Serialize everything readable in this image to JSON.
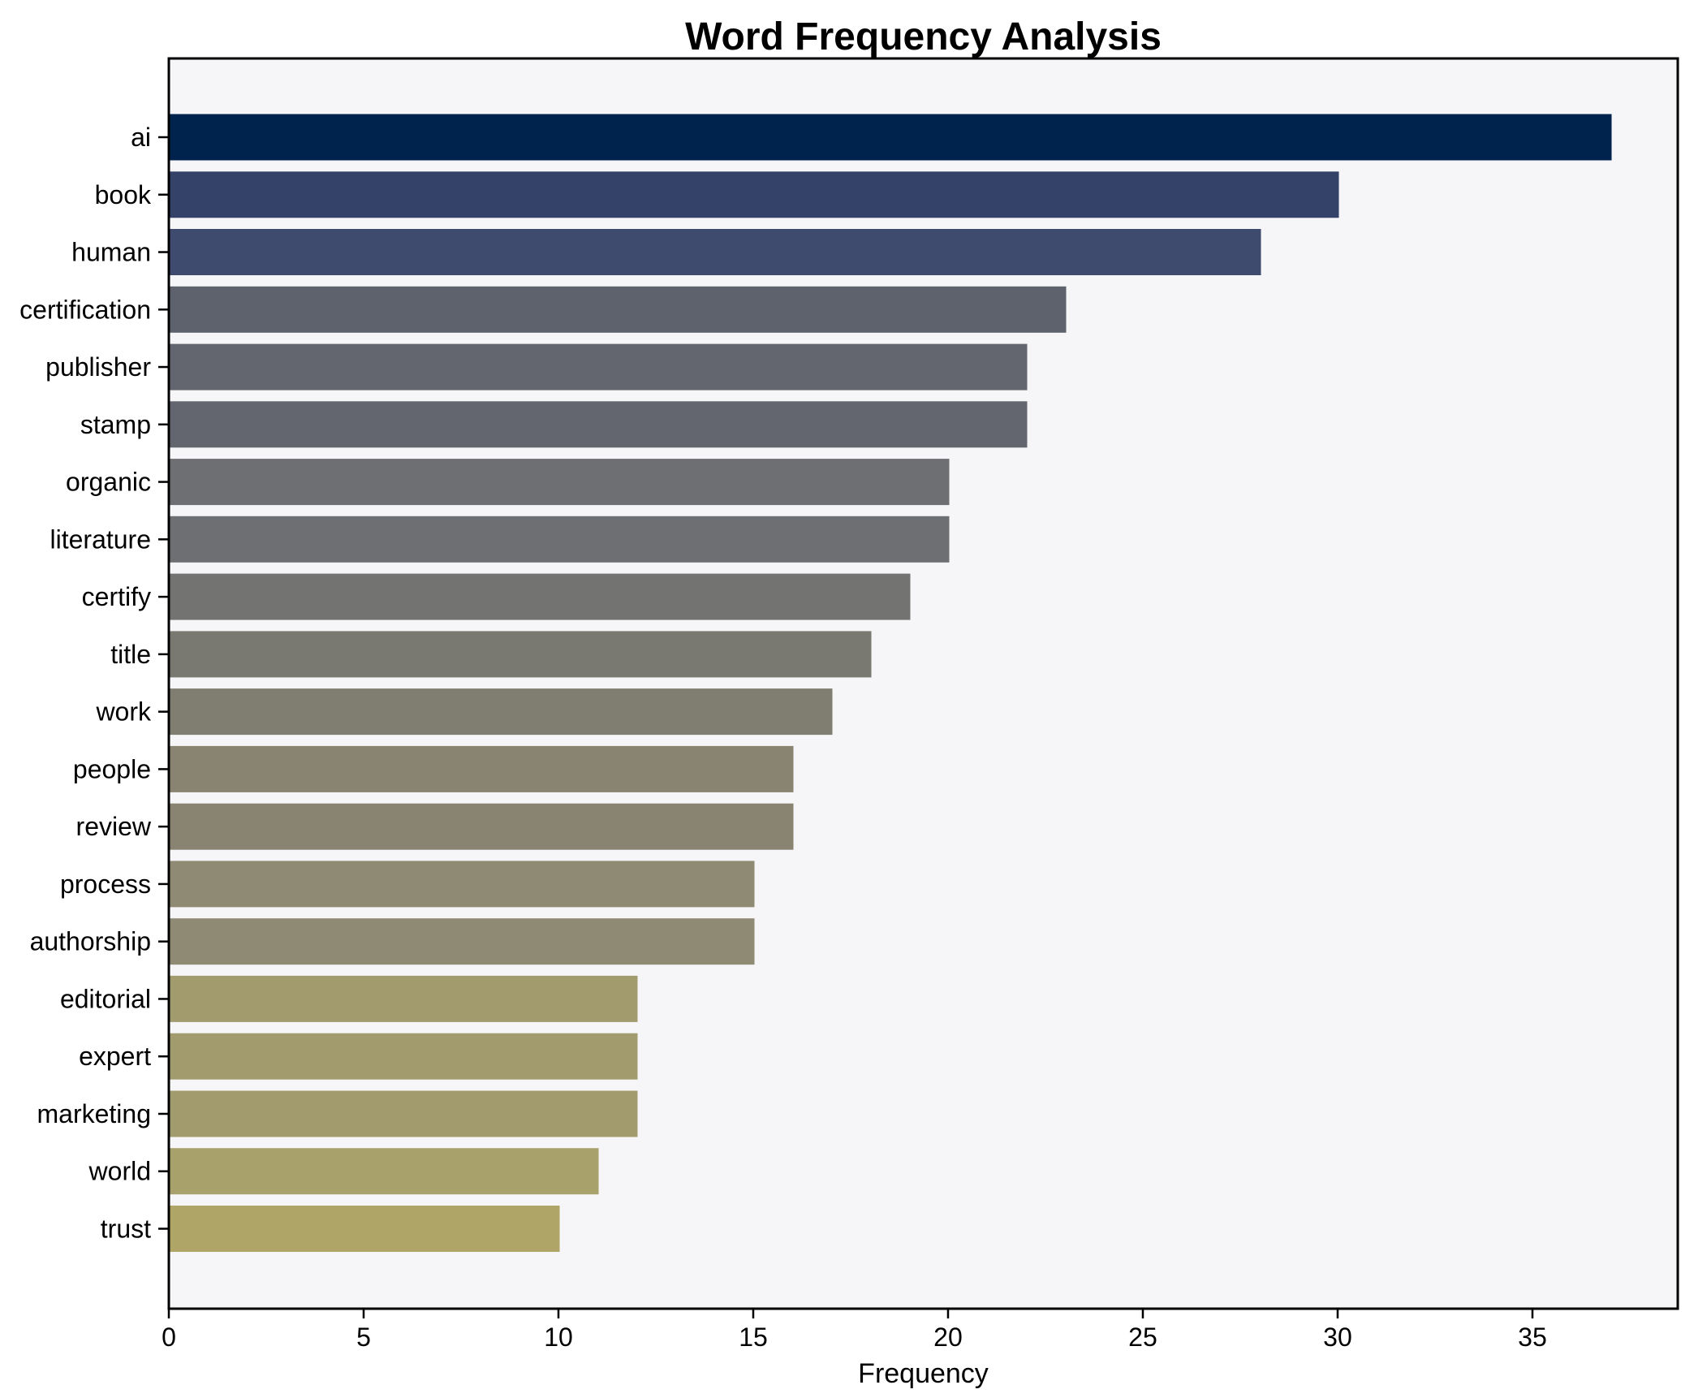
{
  "chart_data": {
    "type": "bar",
    "orientation": "horizontal",
    "title": "Word Frequency Analysis",
    "xlabel": "Frequency",
    "ylabel": "",
    "categories": [
      "ai",
      "book",
      "human",
      "certification",
      "publisher",
      "stamp",
      "organic",
      "literature",
      "certify",
      "title",
      "work",
      "people",
      "review",
      "process",
      "authorship",
      "editorial",
      "expert",
      "marketing",
      "world",
      "trust"
    ],
    "values": [
      37,
      30,
      28,
      23,
      22,
      22,
      20,
      20,
      19,
      18,
      17,
      16,
      16,
      15,
      15,
      12,
      12,
      12,
      11,
      10
    ],
    "bar_colors": [
      "#00234d",
      "#344169",
      "#3f4b6e",
      "#5e626c",
      "#63666e",
      "#63666e",
      "#6d6f72",
      "#6d6f72",
      "#737472",
      "#7a7971",
      "#807e70",
      "#888471",
      "#888471",
      "#8f8a73",
      "#8f8a73",
      "#a29b6e",
      "#a29b6e",
      "#a29b6e",
      "#a8a16b",
      "#afa566"
    ],
    "x_ticks": [
      0,
      5,
      10,
      15,
      20,
      25,
      30,
      35
    ],
    "xlim": [
      0,
      38.73
    ],
    "grid": false,
    "legend": "none",
    "plot_bg": "#f6f5f7",
    "figure_bg": "#ffffff",
    "spine_color": "#000000",
    "text_color": "#000000"
  }
}
